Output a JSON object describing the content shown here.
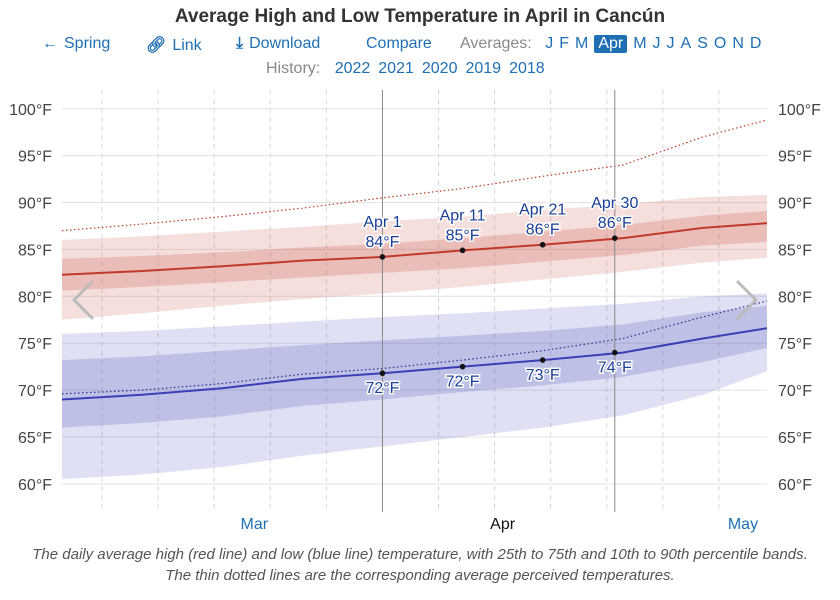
{
  "title": "Average High and Low Temperature in April in Cancún",
  "nav": {
    "spring_label": "Spring",
    "link_label": "Link",
    "download_label": "Download",
    "compare_label": "Compare"
  },
  "averages": {
    "label": "Averages:",
    "months": [
      "J",
      "F",
      "M",
      "Apr",
      "M",
      "J",
      "J",
      "A",
      "S",
      "O",
      "N",
      "D"
    ],
    "active_index": 3
  },
  "history": {
    "label": "History:",
    "years": [
      "2022",
      "2021",
      "2020",
      "2019",
      "2018"
    ]
  },
  "colors": {
    "high": "#c0392b",
    "low": "#3b3fb6",
    "link": "#1f6fb3"
  },
  "chart_data": {
    "type": "line",
    "title": "Average High and Low Temperature in April in Cancún",
    "ylim": [
      57,
      102
    ],
    "y_ticks": [
      "100°F",
      "95°F",
      "90°F",
      "85°F",
      "80°F",
      "75°F",
      "70°F",
      "65°F",
      "60°F"
    ],
    "y_tick_values": [
      100,
      95,
      90,
      85,
      80,
      75,
      70,
      65,
      60
    ],
    "x_day_range": [
      -40,
      48
    ],
    "x_month_labels": [
      {
        "label": "Mar",
        "day": -16,
        "current": false
      },
      {
        "label": "Apr",
        "day": 15,
        "current": true
      },
      {
        "label": "May",
        "day": 45,
        "current": false
      }
    ],
    "grid": true,
    "series": [
      {
        "name": "high",
        "x": [
          -40,
          -30,
          -20,
          -10,
          0,
          10,
          20,
          30,
          40,
          48
        ],
        "avg": [
          82.3,
          82.7,
          83.2,
          83.8,
          84.2,
          84.9,
          85.5,
          86.2,
          87.3,
          87.8
        ],
        "p25": [
          80.6,
          81.0,
          81.5,
          82.0,
          82.5,
          83.0,
          83.7,
          84.4,
          85.4,
          85.8
        ],
        "p75": [
          84.0,
          84.3,
          84.7,
          85.2,
          85.6,
          86.2,
          86.9,
          87.6,
          88.6,
          89.1
        ],
        "p10": [
          77.5,
          78.2,
          79.0,
          79.7,
          80.3,
          81.0,
          81.8,
          82.6,
          83.6,
          84.1
        ],
        "p90": [
          86.0,
          86.4,
          86.9,
          87.4,
          88.0,
          88.5,
          89.2,
          89.8,
          90.6,
          90.8
        ],
        "perceived": [
          87.0,
          87.7,
          88.5,
          89.4,
          90.5,
          91.5,
          92.8,
          94.0,
          97.0,
          98.8
        ]
      },
      {
        "name": "low",
        "x": [
          -40,
          -30,
          -20,
          -10,
          0,
          10,
          20,
          30,
          40,
          48
        ],
        "avg": [
          69.0,
          69.5,
          70.2,
          71.2,
          71.8,
          72.5,
          73.2,
          74.0,
          75.5,
          76.6
        ],
        "p25": [
          66.0,
          66.5,
          67.2,
          68.3,
          69.0,
          69.8,
          70.5,
          71.4,
          73.0,
          74.5
        ],
        "p75": [
          73.2,
          73.6,
          74.2,
          74.8,
          75.3,
          75.8,
          76.3,
          77.0,
          78.3,
          79.0
        ],
        "p10": [
          60.5,
          61.0,
          61.8,
          63.0,
          64.0,
          65.0,
          66.0,
          67.3,
          69.5,
          72.0
        ],
        "p90": [
          76.0,
          76.3,
          76.8,
          77.3,
          77.8,
          78.2,
          78.7,
          79.2,
          80.0,
          80.3
        ],
        "perceived": [
          69.6,
          70.0,
          70.7,
          71.7,
          72.3,
          73.2,
          74.2,
          75.5,
          77.8,
          79.5
        ]
      }
    ],
    "markers": [
      {
        "day": 0,
        "date": "Apr 1",
        "high": "84°F",
        "low": "72°F",
        "high_value": 84.2,
        "low_value": 71.8
      },
      {
        "day": 10,
        "date": "Apr 11",
        "high": "85°F",
        "low": "72°F",
        "high_value": 84.9,
        "low_value": 72.5
      },
      {
        "day": 20,
        "date": "Apr 21",
        "high": "86°F",
        "low": "73°F",
        "high_value": 85.5,
        "low_value": 73.2
      },
      {
        "day": 29,
        "date": "Apr 30",
        "high": "86°F",
        "low": "74°F",
        "high_value": 86.2,
        "low_value": 74.0
      }
    ],
    "vertical_lines_days": [
      0,
      29
    ]
  },
  "caption": "The daily average high (red line) and low (blue line) temperature, with 25th to 75th and 10th to 90th percentile bands. The thin dotted lines are the corresponding average perceived temperatures."
}
